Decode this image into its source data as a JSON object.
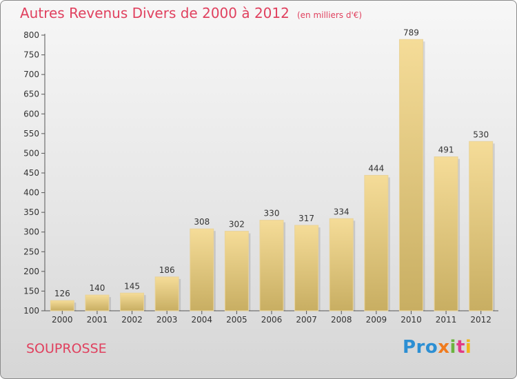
{
  "chart_data": {
    "type": "bar",
    "title": "Autres Revenus Divers de 2000 à 2012",
    "subtitle": "(en milliers d'€)",
    "categories": [
      "2000",
      "2001",
      "2002",
      "2003",
      "2004",
      "2005",
      "2006",
      "2007",
      "2008",
      "2009",
      "2010",
      "2011",
      "2012"
    ],
    "values": [
      126,
      140,
      145,
      186,
      308,
      302,
      330,
      317,
      334,
      444,
      789,
      491,
      530
    ],
    "ylim": [
      100,
      800
    ],
    "yticks": [
      100,
      150,
      200,
      250,
      300,
      350,
      400,
      450,
      500,
      550,
      600,
      650,
      700,
      750,
      800
    ],
    "grid": false,
    "legend": "none",
    "bar_color_top": "#f5dc98",
    "bar_color_bottom": "#c8ae62",
    "title_color": "#e0405e"
  },
  "footer": {
    "commune": "SOUPROSSE",
    "brand": [
      "Pro",
      "x",
      "i",
      "t",
      "i"
    ]
  }
}
